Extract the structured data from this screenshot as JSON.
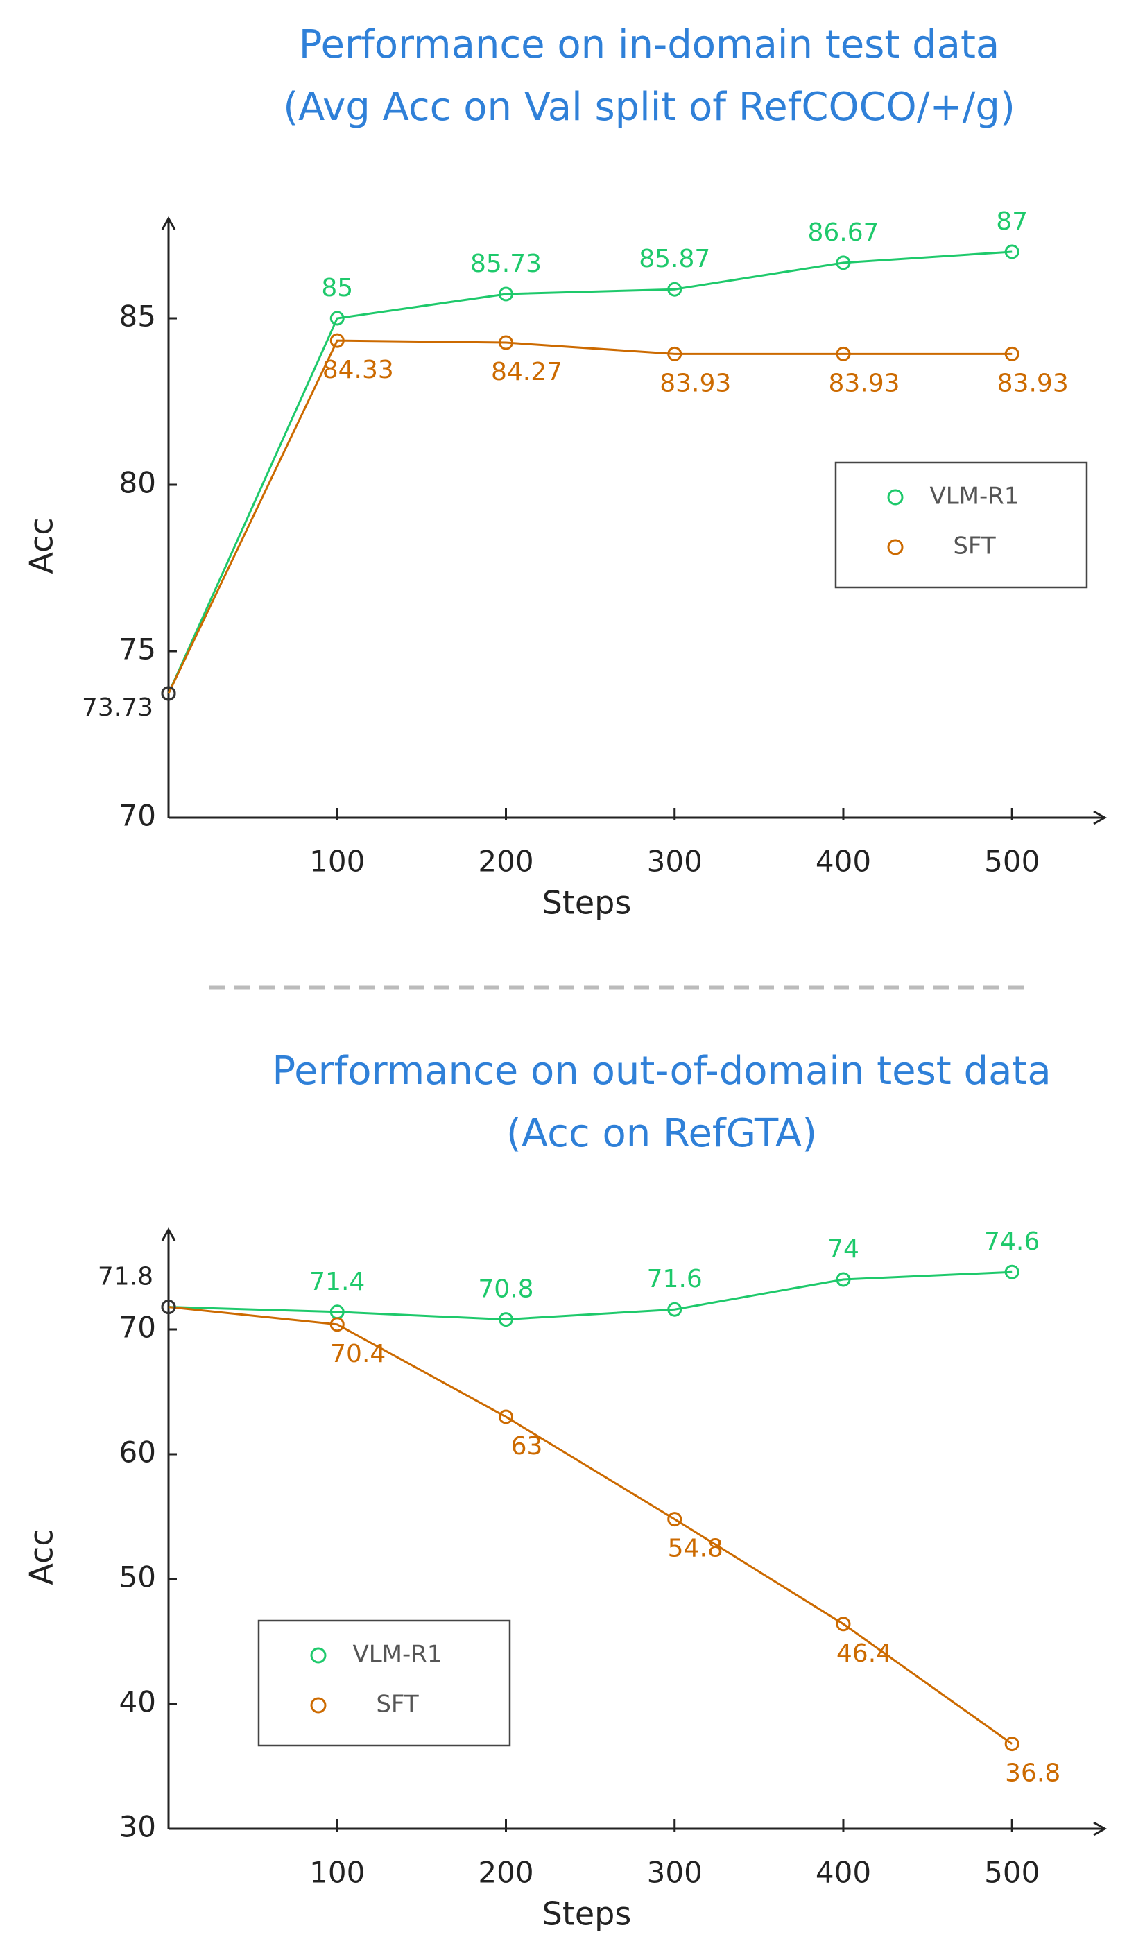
{
  "chart_data": [
    {
      "type": "line",
      "title": [
        "Performance on in-domain test data",
        "(Avg Acc on Val split of RefCOCO/+/g)"
      ],
      "x_label": "Steps",
      "y_label": "Acc",
      "x": [
        0,
        100,
        200,
        300,
        400,
        500
      ],
      "xlim": [
        0,
        555
      ],
      "xticks": [
        100,
        200,
        300,
        400,
        500
      ],
      "ylim": [
        70,
        88
      ],
      "yticks": [
        70,
        75,
        80,
        85
      ],
      "legend": "center right",
      "series": [
        {
          "name": "VLM-R1",
          "color": "#1ec96b",
          "values": [
            73.73,
            85,
            85.73,
            85.87,
            86.67,
            87
          ]
        },
        {
          "name": "SFT",
          "color": "#cc6a00",
          "values": [
            73.73,
            84.33,
            84.27,
            83.93,
            83.93,
            83.93
          ]
        }
      ]
    },
    {
      "type": "line",
      "title": [
        "Performance on out-of-domain test data",
        "(Acc on RefGTA)"
      ],
      "x_label": "Steps",
      "y_label": "Acc",
      "x": [
        0,
        100,
        200,
        300,
        400,
        500
      ],
      "xlim": [
        0,
        555
      ],
      "xticks": [
        100,
        200,
        300,
        400,
        500
      ],
      "ylim": [
        30,
        78
      ],
      "yticks": [
        30,
        40,
        50,
        60,
        70
      ],
      "legend": "lower left",
      "series": [
        {
          "name": "VLM-R1",
          "color": "#1ec96b",
          "values": [
            71.8,
            71.4,
            70.8,
            71.6,
            74,
            74.6
          ]
        },
        {
          "name": "SFT",
          "color": "#cc6a00",
          "values": [
            71.8,
            70.4,
            63,
            54.8,
            46.4,
            36.8
          ]
        }
      ]
    }
  ]
}
